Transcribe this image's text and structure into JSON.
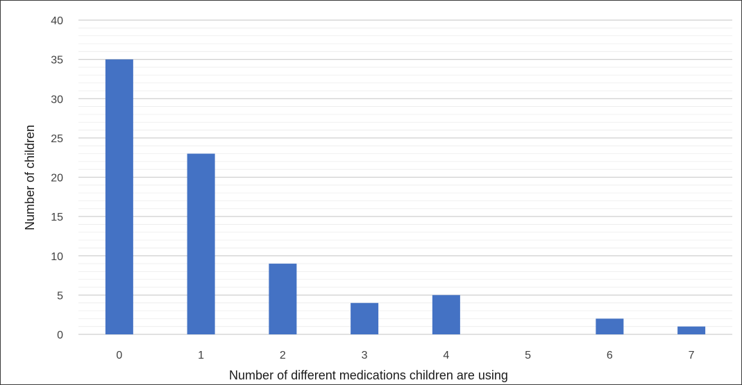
{
  "chart_data": {
    "type": "bar",
    "title": "",
    "xlabel": "Number of different medications children are using",
    "ylabel": "Number of children",
    "categories": [
      "0",
      "1",
      "2",
      "3",
      "4",
      "5",
      "6",
      "7"
    ],
    "values": [
      35,
      23,
      9,
      4,
      5,
      0,
      2,
      1
    ],
    "ylim": [
      0,
      40
    ],
    "y_ticks": [
      "0",
      "5",
      "10",
      "15",
      "20",
      "25",
      "30",
      "35",
      "40"
    ],
    "grid": "major and minor horizontal gridlines",
    "legend": "none",
    "bar_color": "#4472C4"
  }
}
